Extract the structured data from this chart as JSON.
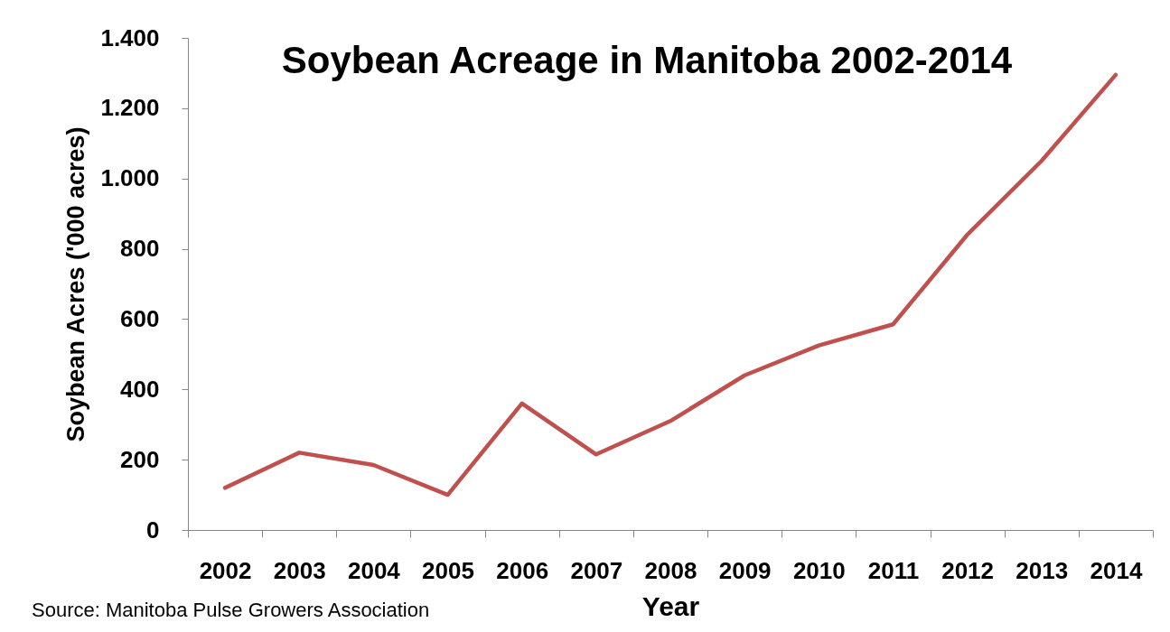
{
  "chart_data": {
    "type": "line",
    "title": "Soybean Acreage in Manitoba 2002-2014",
    "xlabel": "Year",
    "ylabel": "Soybean Acres ('000 acres)",
    "annotations": [
      "Source: Manitoba Pulse Growers Association"
    ],
    "categories": [
      "2002",
      "2003",
      "2004",
      "2005",
      "2006",
      "2007",
      "2008",
      "2009",
      "2010",
      "2011",
      "2012",
      "2013",
      "2014"
    ],
    "series": [
      {
        "color": "#c0504d",
        "values": [
          120,
          220,
          185,
          100,
          360,
          215,
          310,
          440,
          525,
          585,
          840,
          1050,
          1295
        ]
      }
    ],
    "ylim": [
      0,
      1400
    ],
    "yticks": [
      0,
      200,
      400,
      600,
      800,
      {
        "value": 1000,
        "label": "1.000"
      },
      {
        "value": 1200,
        "label": "1.200"
      },
      {
        "value": 1400,
        "label": "1.400"
      }
    ],
    "grid": false,
    "line_style": "solid"
  }
}
